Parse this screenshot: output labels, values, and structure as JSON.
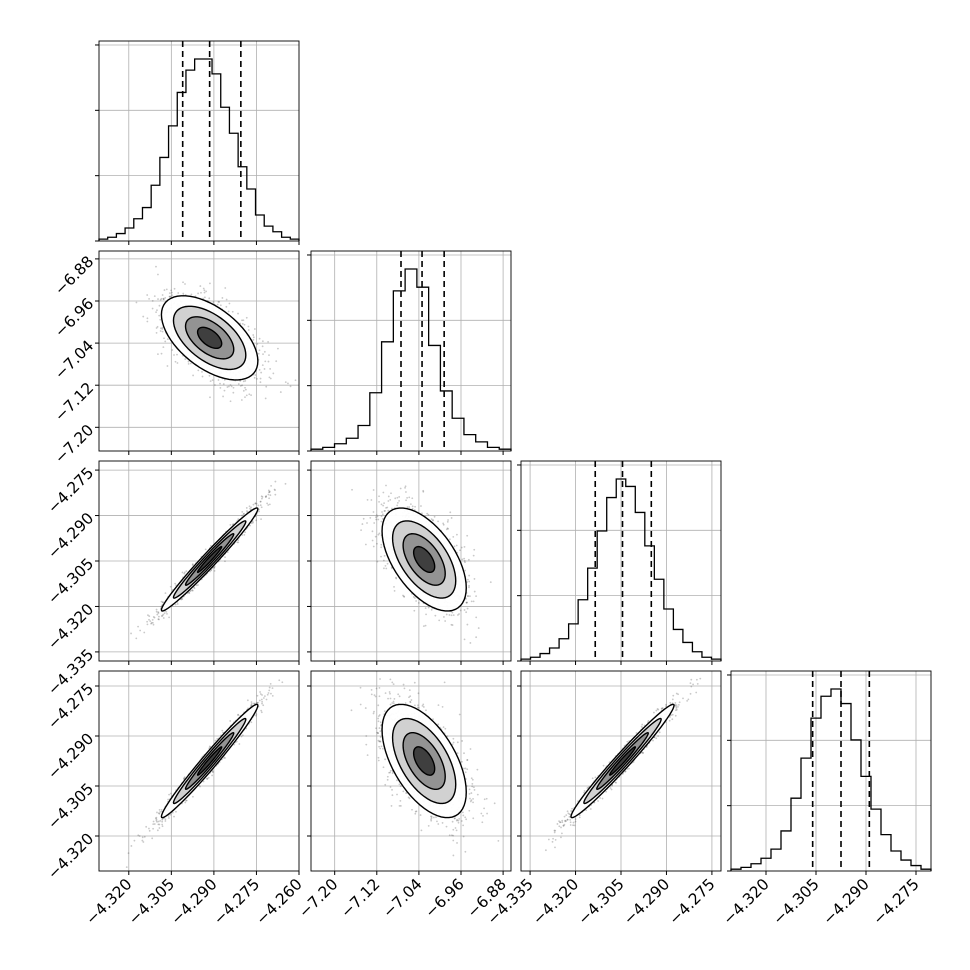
{
  "chart_data": {
    "type": "corner",
    "variables": [
      {
        "center": -4.2915,
        "sigma": 0.0085,
        "range": [
          -4.3305,
          -4.26
        ],
        "ticks": [
          -4.32,
          -4.305,
          -4.29,
          -4.275,
          -4.26
        ],
        "tick_labels": [
          "−4.320",
          "−4.305",
          "−4.290",
          "−4.275",
          "−4.260"
        ],
        "quantiles": [
          -4.301,
          -4.2915,
          -4.2805
        ],
        "hist_counts": [
          1,
          2,
          4,
          7,
          12,
          18,
          30,
          45,
          62,
          80,
          92,
          98,
          98,
          90,
          72,
          58,
          40,
          28,
          14,
          8,
          5,
          2,
          1
        ]
      },
      {
        "center": -7.03,
        "sigma": 0.04,
        "range": [
          -7.245,
          -6.865
        ],
        "ticks": [
          -7.2,
          -7.12,
          -7.04,
          -6.96,
          -6.88
        ],
        "tick_labels": [
          "−7.20",
          "−7.12",
          "−7.04",
          "−6.96",
          "−6.88"
        ],
        "quantiles": [
          -7.074,
          -7.034,
          -6.992
        ],
        "hist_counts": [
          1,
          2,
          4,
          7,
          14,
          32,
          60,
          88,
          100,
          90,
          58,
          33,
          18,
          9,
          5,
          2,
          1
        ]
      },
      {
        "center": -4.3045,
        "sigma": 0.0085,
        "range": [
          -4.338,
          -4.272
        ],
        "ticks": [
          -4.335,
          -4.32,
          -4.305,
          -4.29,
          -4.275
        ],
        "tick_labels": [
          "−4.335",
          "−4.320",
          "−4.305",
          "−4.290",
          "−4.275"
        ],
        "quantiles": [
          -4.3135,
          -4.3045,
          -4.295
        ],
        "hist_counts": [
          1,
          2,
          4,
          7,
          12,
          20,
          33,
          50,
          70,
          88,
          98,
          94,
          80,
          62,
          44,
          28,
          17,
          10,
          5,
          2,
          1
        ]
      },
      {
        "center": -4.2975,
        "sigma": 0.0085,
        "range": [
          -4.3305,
          -4.2705
        ],
        "ticks": [
          -4.32,
          -4.305,
          -4.29,
          -4.275
        ],
        "tick_labels": [
          "−4.320",
          "−4.305",
          "−4.290",
          "−4.275"
        ],
        "quantiles": [
          -4.306,
          -4.2975,
          -4.289
        ],
        "hist_counts": [
          1,
          2,
          4,
          7,
          12,
          22,
          40,
          62,
          84,
          96,
          100,
          92,
          72,
          52,
          34,
          20,
          11,
          6,
          3,
          1
        ]
      }
    ],
    "correlations": [
      [
        1.0,
        -0.55,
        0.98,
        0.98
      ],
      [
        -0.55,
        1.0,
        -0.55,
        -0.55
      ],
      [
        0.98,
        -0.55,
        1.0,
        0.98
      ],
      [
        0.98,
        -0.55,
        0.98,
        1.0
      ]
    ],
    "quantile_levels": [
      0.16,
      0.5,
      0.84
    ],
    "grid": true,
    "colors": {
      "points": "#4d4d4d",
      "line": "#000000",
      "grid": "#b0b0b0",
      "frame": "#000000"
    }
  }
}
